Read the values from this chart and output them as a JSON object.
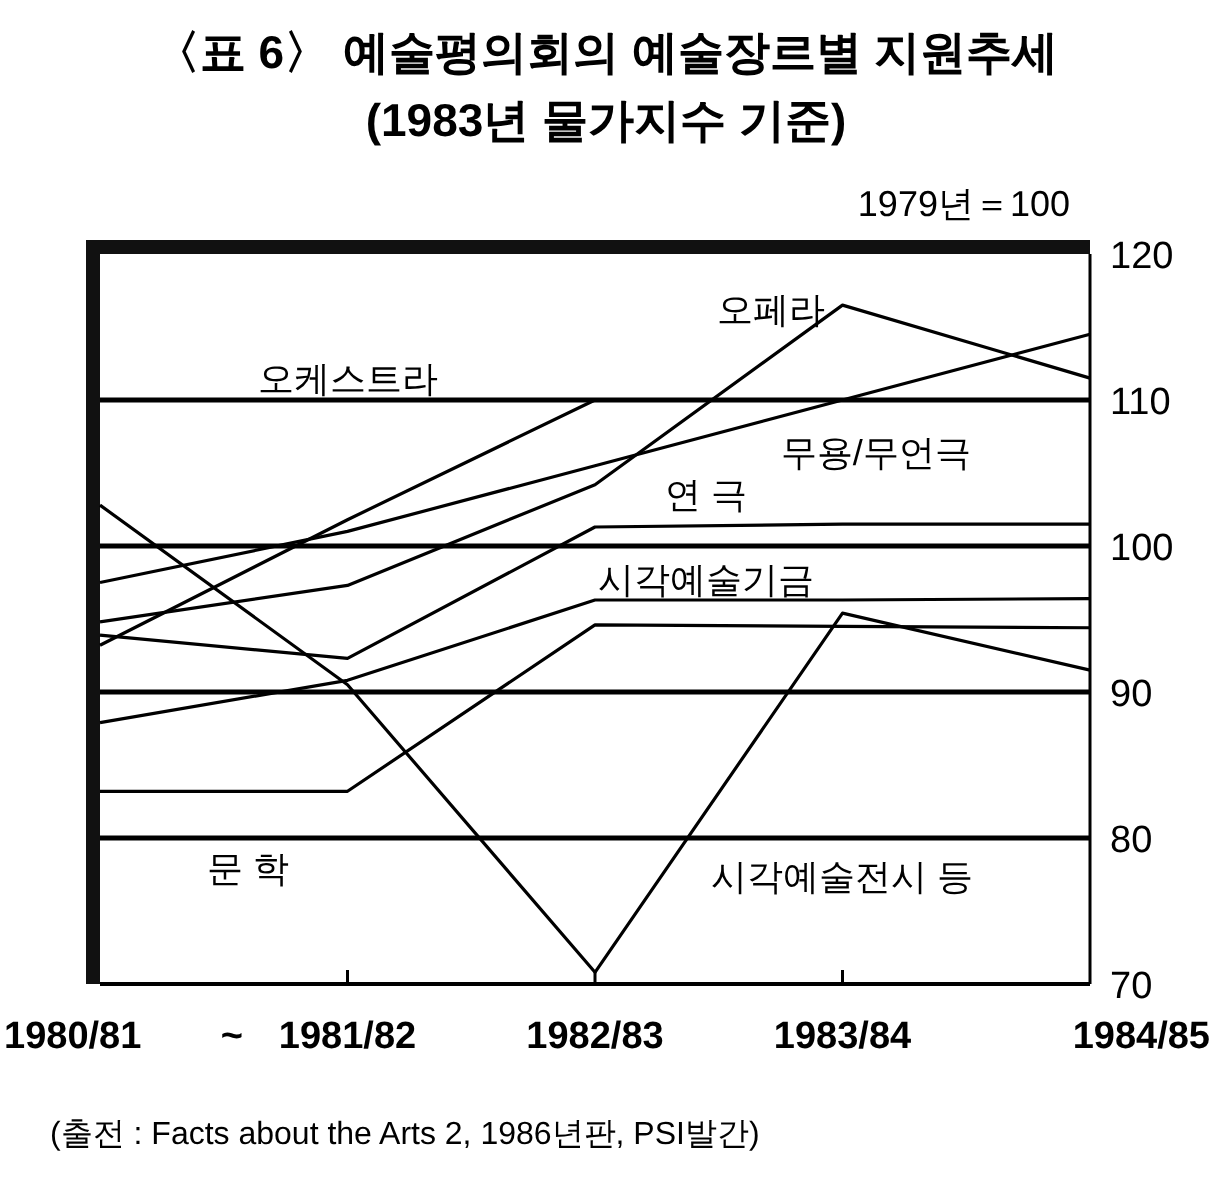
{
  "chart_data": {
    "type": "line",
    "title": "〈표 6〉 예술평의회의 예술장르별 지원추세",
    "subtitle": "(1983년 물가지수 기준)",
    "categories": [
      "1980/81",
      "1981/82",
      "1982/83",
      "1983/84",
      "1984/85"
    ],
    "series": [
      {
        "name": "오케스트라",
        "color": "#000000",
        "values": [
          93.2,
          101.8,
          110,
          110,
          110
        ]
      },
      {
        "name": "오페라",
        "color": "#000000",
        "values": [
          94.8,
          97.3,
          104.2,
          116.5,
          111.5
        ]
      },
      {
        "name": "무용/무언극",
        "color": "#000000",
        "values": [
          97.5,
          101,
          105.5,
          110,
          114.5
        ]
      },
      {
        "name": "연 극",
        "color": "#000000",
        "values": [
          93.9,
          92.3,
          101.3,
          101.5,
          101.5
        ]
      },
      {
        "name": "시각예술기금",
        "color": "#000000",
        "values": [
          87.9,
          90.8,
          96.3,
          96.3,
          96.4
        ]
      },
      {
        "name": "문 학",
        "color": "#000000",
        "values": [
          83.2,
          83.2,
          94.6,
          94.5,
          94.4
        ]
      },
      {
        "name": "시각예술전시 등",
        "color": "#000000",
        "values": [
          102.8,
          90.5,
          70.8,
          95.4,
          91.5
        ]
      }
    ],
    "ylim": [
      70,
      120
    ],
    "yticks": [
      70,
      80,
      90,
      100,
      110,
      120
    ],
    "grid": "y",
    "marker": "none",
    "line_style": "solid",
    "annotations": [
      "1979년＝100",
      "~",
      "(출전 : Facts about the Arts 2, 1986년판, PSI발간)"
    ]
  }
}
